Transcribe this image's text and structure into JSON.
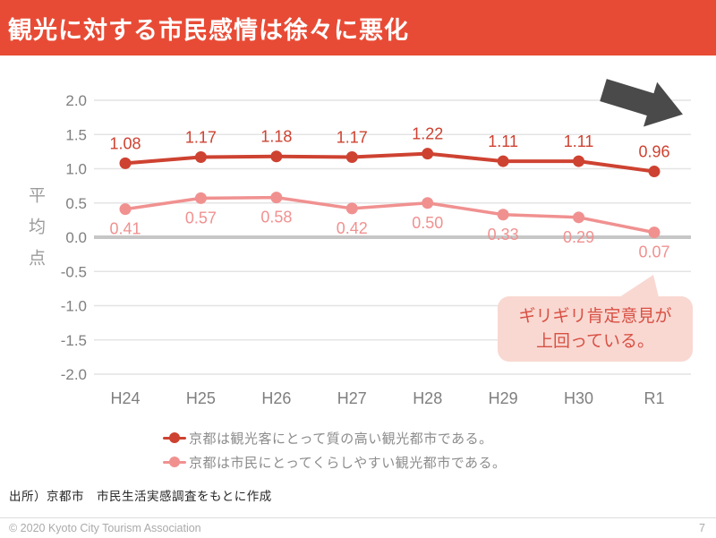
{
  "header": {
    "title": "観光に対する市民感情は徐々に悪化"
  },
  "chart_data": {
    "type": "line",
    "categories": [
      "H24",
      "H25",
      "H26",
      "H27",
      "H28",
      "H29",
      "H30",
      "R1"
    ],
    "series": [
      {
        "name": "京都は観光客にとって質の高い観光都市である。",
        "color": "#CE4231",
        "values": [
          1.08,
          1.17,
          1.18,
          1.17,
          1.22,
          1.11,
          1.11,
          0.96
        ],
        "label_position": "above"
      },
      {
        "name": "京都は市民にとってくらしやすい観光都市である。",
        "color": "#F09190",
        "values": [
          0.41,
          0.57,
          0.58,
          0.42,
          0.5,
          0.33,
          0.29,
          0.07
        ],
        "label_position": "below"
      }
    ],
    "ylabel": "平均点",
    "ylim": [
      -2.0,
      2.0
    ],
    "ytick_step": 0.5,
    "grid": true,
    "legend_position": "bottom",
    "colors": {
      "grid": "#E4E4E4",
      "zero_line": "#C6C6C6",
      "tick_label": "#7F7F7F",
      "arrow": "#4A4A4A",
      "callout_bg": "#F9D8D2",
      "callout_text": "#D85043"
    }
  },
  "annotation": {
    "callout_line1": "ギリギリ肯定意見が",
    "callout_line2": "上回っている。"
  },
  "source": {
    "text": "出所）京都市　市民生活実感調査をもとに作成"
  },
  "footer": {
    "copyright": "© 2020 Kyoto City Tourism Association",
    "page_number": "7"
  }
}
